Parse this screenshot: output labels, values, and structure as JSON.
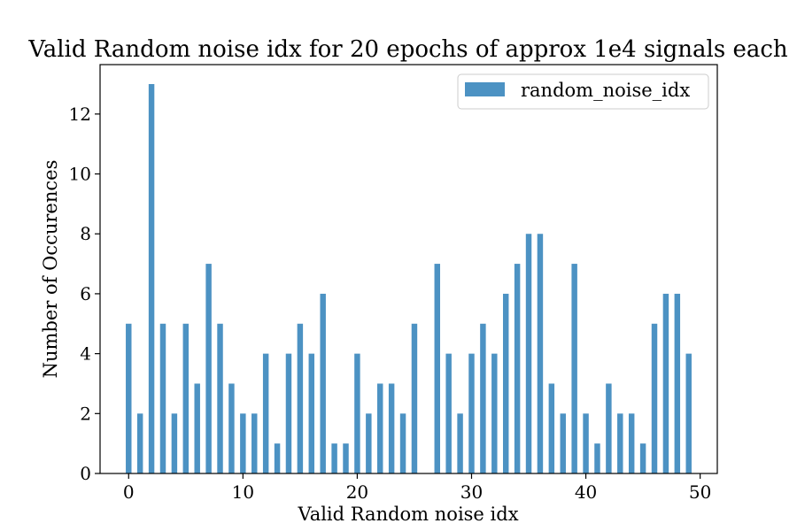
{
  "chart_data": {
    "type": "bar",
    "title": "Valid Random noise idx for 20 epochs of approx 1e4 signals each",
    "xlabel": "Valid Random noise idx",
    "ylabel": "Number of Occurences",
    "xlim": [
      -2.5,
      51.5
    ],
    "ylim": [
      0,
      13.65
    ],
    "xticks": [
      0,
      10,
      20,
      30,
      40,
      50
    ],
    "yticks": [
      0,
      2,
      4,
      6,
      8,
      10,
      12
    ],
    "bar_width": 0.5,
    "legend_position": "top-right",
    "grid": false,
    "series": [
      {
        "name": "random_noise_idx",
        "color": "#4c92c3",
        "x": [
          0,
          1,
          2,
          3,
          4,
          5,
          6,
          7,
          8,
          9,
          10,
          11,
          12,
          13,
          14,
          15,
          16,
          17,
          18,
          19,
          20,
          21,
          22,
          23,
          24,
          25,
          26,
          27,
          28,
          29,
          30,
          31,
          32,
          33,
          34,
          35,
          36,
          37,
          38,
          39,
          40,
          41,
          42,
          43,
          44,
          45,
          46,
          47,
          48,
          49
        ],
        "values": [
          5,
          2,
          13,
          5,
          2,
          5,
          3,
          7,
          5,
          3,
          2,
          2,
          4,
          1,
          4,
          5,
          4,
          6,
          1,
          1,
          4,
          2,
          3,
          3,
          2,
          5,
          0,
          7,
          4,
          2,
          4,
          5,
          4,
          6,
          7,
          8,
          8,
          3,
          2,
          7,
          2,
          1,
          3,
          2,
          2,
          1,
          5,
          6,
          6,
          4
        ]
      }
    ]
  }
}
